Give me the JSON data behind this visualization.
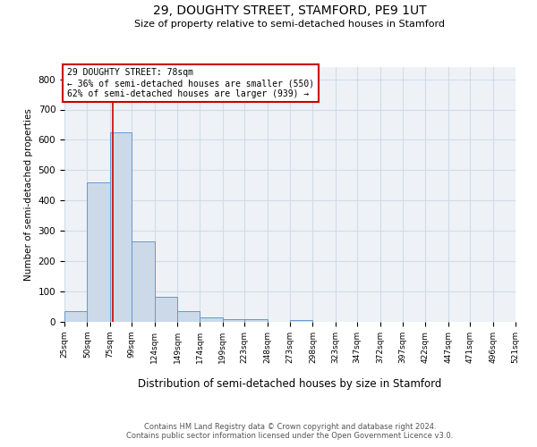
{
  "title1": "29, DOUGHTY STREET, STAMFORD, PE9 1UT",
  "title2": "Size of property relative to semi-detached houses in Stamford",
  "xlabel": "Distribution of semi-detached houses by size in Stamford",
  "ylabel": "Number of semi-detached properties",
  "bins": [
    25,
    50,
    75,
    99,
    124,
    149,
    174,
    199,
    223,
    248,
    273,
    298,
    323,
    347,
    372,
    397,
    422,
    447,
    471,
    496,
    521
  ],
  "counts": [
    35,
    460,
    625,
    265,
    83,
    35,
    15,
    10,
    10,
    0,
    7,
    0,
    0,
    0,
    0,
    0,
    0,
    0,
    0,
    0
  ],
  "bar_color": "#ccd9e8",
  "bar_edge_color": "#6699cc",
  "property_size": 78,
  "property_line_color": "#cc0000",
  "annotation_text": "29 DOUGHTY STREET: 78sqm\n← 36% of semi-detached houses are smaller (550)\n62% of semi-detached houses are larger (939) →",
  "annotation_box_color": "#ffffff",
  "annotation_box_edge_color": "#cc0000",
  "ylim": [
    0,
    840
  ],
  "yticks": [
    0,
    100,
    200,
    300,
    400,
    500,
    600,
    700,
    800
  ],
  "tick_labels": [
    "25sqm",
    "50sqm",
    "75sqm",
    "99sqm",
    "124sqm",
    "149sqm",
    "174sqm",
    "199sqm",
    "223sqm",
    "248sqm",
    "273sqm",
    "298sqm",
    "323sqm",
    "347sqm",
    "372sqm",
    "397sqm",
    "422sqm",
    "447sqm",
    "471sqm",
    "496sqm",
    "521sqm"
  ],
  "footer1": "Contains HM Land Registry data © Crown copyright and database right 2024.",
  "footer2": "Contains public sector information licensed under the Open Government Licence v3.0.",
  "grid_color": "#d0dce8",
  "background_color": "#eef2f7"
}
